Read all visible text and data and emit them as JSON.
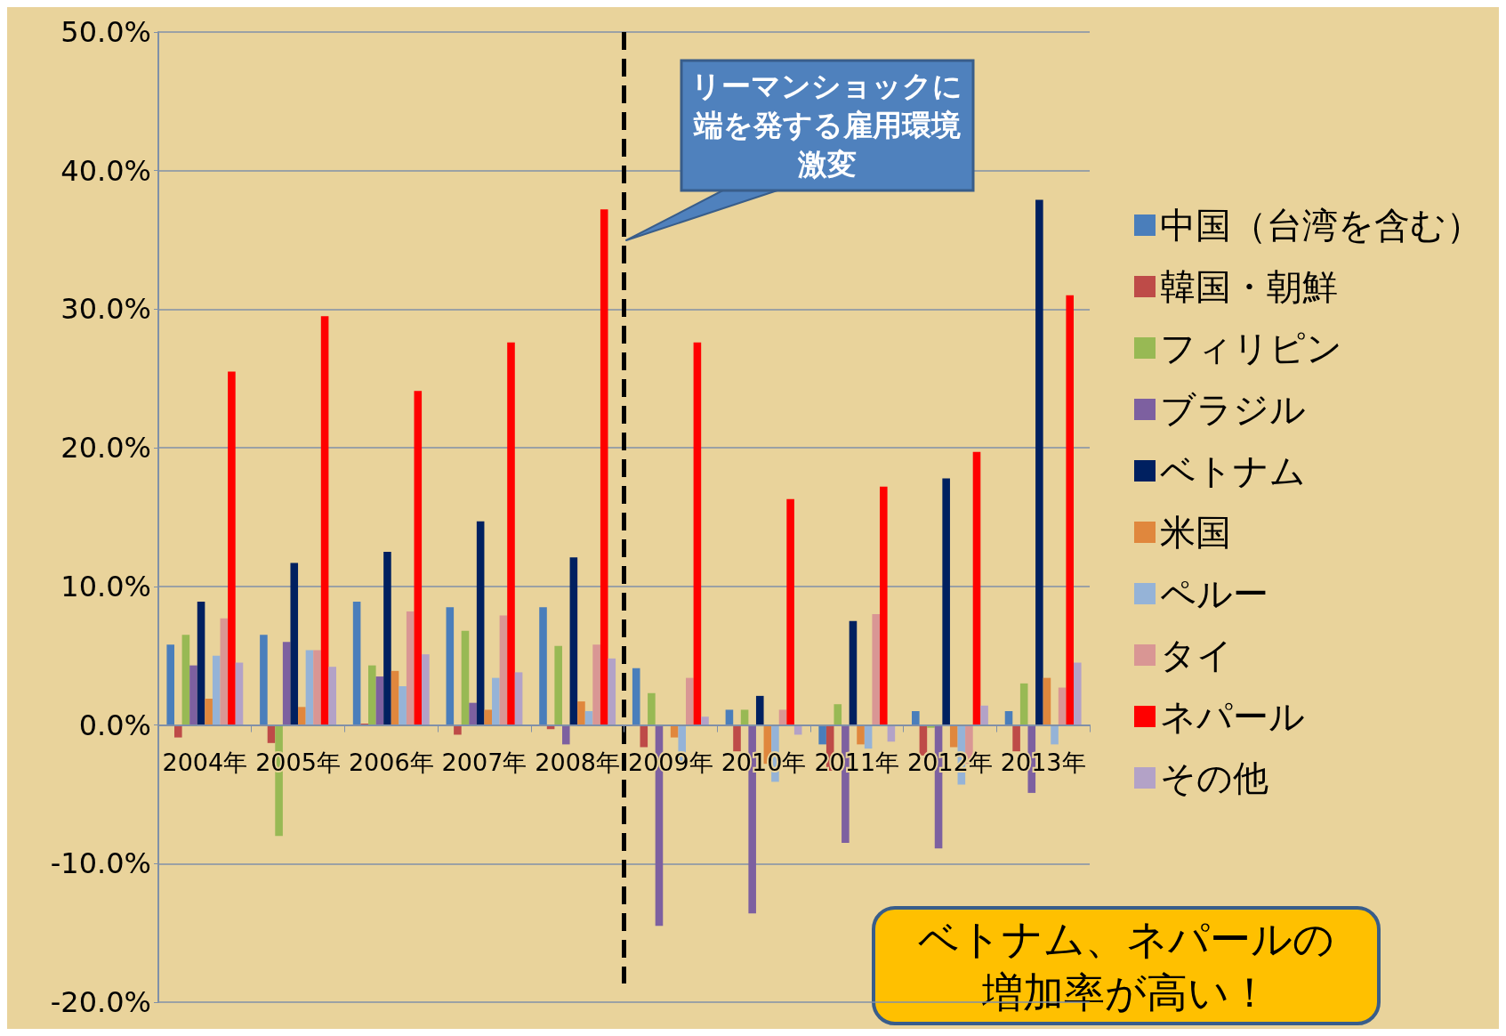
{
  "chart_data": {
    "type": "bar",
    "categories": [
      "2004年",
      "2005年",
      "2006年",
      "2007年",
      "2008年",
      "2009年",
      "2010年",
      "2011年",
      "2012年",
      "2013年"
    ],
    "series": [
      {
        "name": "中国（台湾を含む）",
        "color": "#4a7ebb",
        "values": [
          5.8,
          6.5,
          8.9,
          8.5,
          8.5,
          4.1,
          1.1,
          -1.4,
          1.0,
          1.0
        ]
      },
      {
        "name": "韓国・朝鮮",
        "color": "#be4b48",
        "values": [
          -0.9,
          -1.3,
          0.1,
          -0.7,
          -0.3,
          -1.6,
          -1.9,
          -3.3,
          -2.2,
          -1.9
        ]
      },
      {
        "name": "フィリピン",
        "color": "#98b954",
        "values": [
          6.5,
          -8.0,
          4.3,
          6.8,
          5.7,
          2.3,
          1.1,
          1.5,
          -0.2,
          3.0
        ]
      },
      {
        "name": "ブラジル",
        "color": "#7d60a0",
        "values": [
          4.3,
          6.0,
          3.5,
          1.6,
          -1.4,
          -14.5,
          -13.6,
          -8.5,
          -8.9,
          -4.9
        ]
      },
      {
        "name": "ベトナム",
        "color": "#002060",
        "values": [
          8.9,
          11.7,
          12.5,
          14.7,
          12.1,
          0.0,
          2.1,
          7.5,
          17.8,
          37.9
        ]
      },
      {
        "name": "米国",
        "color": "#e0873d",
        "values": [
          1.9,
          1.3,
          3.9,
          1.1,
          1.7,
          -0.9,
          -2.8,
          -1.4,
          -1.6,
          3.4
        ]
      },
      {
        "name": "ペルー",
        "color": "#95b3d7",
        "values": [
          5.0,
          5.4,
          2.8,
          3.4,
          1.0,
          -2.6,
          -4.1,
          -1.7,
          -4.3,
          -1.4
        ]
      },
      {
        "name": "タイ",
        "color": "#d99694",
        "values": [
          7.7,
          5.4,
          8.2,
          7.9,
          5.8,
          3.4,
          1.1,
          8.0,
          -2.8,
          2.7
        ]
      },
      {
        "name": "ネパール",
        "color": "#ff0000",
        "values": [
          25.5,
          29.5,
          24.1,
          27.6,
          37.2,
          27.6,
          16.3,
          17.2,
          19.7,
          31.0
        ]
      },
      {
        "name": "その他",
        "color": "#b3a2c7",
        "values": [
          4.5,
          4.2,
          5.1,
          3.8,
          4.8,
          0.6,
          -0.7,
          -1.2,
          1.4,
          4.5
        ]
      }
    ],
    "ylim": [
      -20,
      50
    ],
    "yticks": [
      {
        "value": -20,
        "label": "-20.0%"
      },
      {
        "value": -10,
        "label": "-10.0%"
      },
      {
        "value": 0,
        "label": "0.0%"
      },
      {
        "value": 10,
        "label": "10.0%"
      },
      {
        "value": 20,
        "label": "20.0%"
      },
      {
        "value": 30,
        "label": "30.0%"
      },
      {
        "value": 40,
        "label": "40.0%"
      },
      {
        "value": 50,
        "label": "50.0%"
      }
    ],
    "grid": "y",
    "legend": "right",
    "ref_lines": [
      {
        "axis": "x",
        "value": "2009年",
        "label": "リーマンショックに端を発する雇用環境激変",
        "color": "#000000",
        "line_style": "dashed"
      }
    ],
    "annotations": [
      "ベトナム、ネパールの増加率が高い！"
    ]
  }
}
